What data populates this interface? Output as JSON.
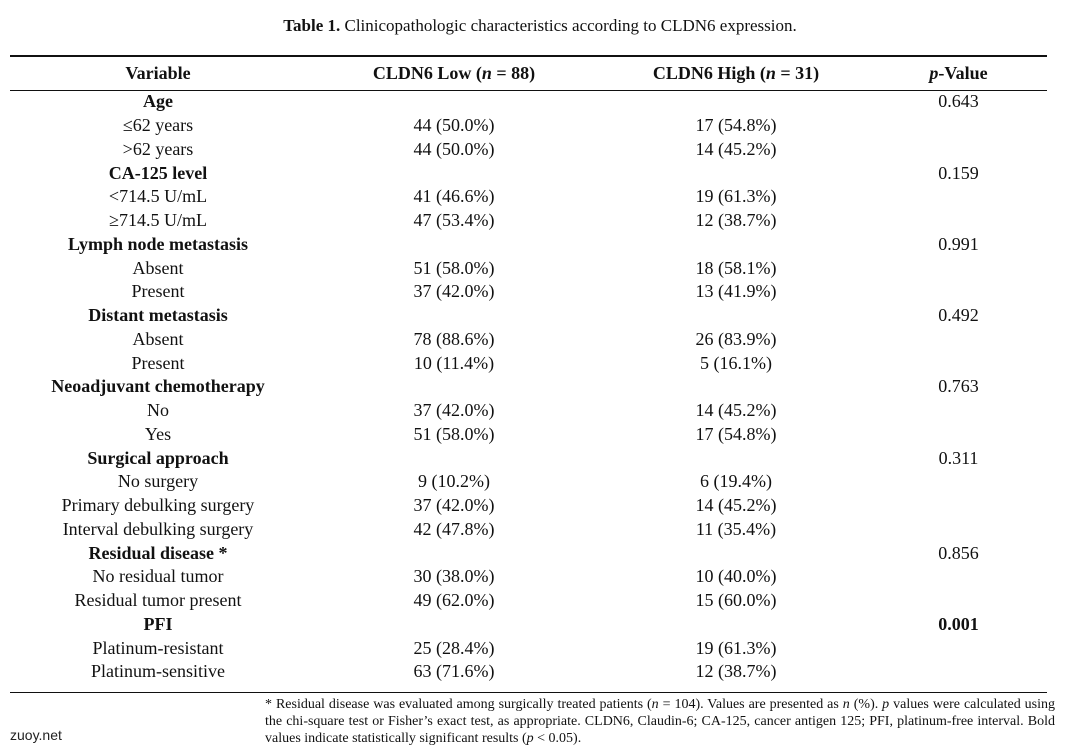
{
  "caption": {
    "label": "Table 1.",
    "text": "Clinicopathologic characteristics according to CLDN6 expression."
  },
  "header": {
    "variable": "Variable",
    "low": "CLDN6 Low (n = 88)",
    "high": "CLDN6 High (n = 31)",
    "p_value": "p-Value"
  },
  "rows": [
    {
      "type": "group",
      "variable": "Age",
      "low": "",
      "high": "",
      "p": "0.643",
      "p_bold": false
    },
    {
      "type": "item",
      "variable": "≤62 years",
      "low": "44 (50.0%)",
      "high": "17 (54.8%)",
      "p": ""
    },
    {
      "type": "item",
      "variable": ">62 years",
      "low": "44 (50.0%)",
      "high": "14 (45.2%)",
      "p": ""
    },
    {
      "type": "group",
      "variable": "CA-125 level",
      "low": "",
      "high": "",
      "p": "0.159",
      "p_bold": false
    },
    {
      "type": "item",
      "variable": "<714.5 U/mL",
      "low": "41 (46.6%)",
      "high": "19 (61.3%)",
      "p": ""
    },
    {
      "type": "item",
      "variable": "≥714.5 U/mL",
      "low": "47 (53.4%)",
      "high": "12 (38.7%)",
      "p": ""
    },
    {
      "type": "group",
      "variable": "Lymph node metastasis",
      "low": "",
      "high": "",
      "p": "0.991",
      "p_bold": false
    },
    {
      "type": "item",
      "variable": "Absent",
      "low": "51 (58.0%)",
      "high": "18 (58.1%)",
      "p": ""
    },
    {
      "type": "item",
      "variable": "Present",
      "low": "37 (42.0%)",
      "high": "13 (41.9%)",
      "p": ""
    },
    {
      "type": "group",
      "variable": "Distant metastasis",
      "low": "",
      "high": "",
      "p": "0.492",
      "p_bold": false
    },
    {
      "type": "item",
      "variable": "Absent",
      "low": "78 (88.6%)",
      "high": "26 (83.9%)",
      "p": ""
    },
    {
      "type": "item",
      "variable": "Present",
      "low": "10 (11.4%)",
      "high": "5 (16.1%)",
      "p": ""
    },
    {
      "type": "group",
      "variable": "Neoadjuvant chemotherapy",
      "low": "",
      "high": "",
      "p": "0.763",
      "p_bold": false
    },
    {
      "type": "item",
      "variable": "No",
      "low": "37 (42.0%)",
      "high": "14 (45.2%)",
      "p": ""
    },
    {
      "type": "item",
      "variable": "Yes",
      "low": "51 (58.0%)",
      "high": "17 (54.8%)",
      "p": ""
    },
    {
      "type": "group",
      "variable": "Surgical approach",
      "low": "",
      "high": "",
      "p": "0.311",
      "p_bold": false
    },
    {
      "type": "item",
      "variable": "No surgery",
      "low": "9 (10.2%)",
      "high": "6 (19.4%)",
      "p": ""
    },
    {
      "type": "item",
      "variable": "Primary debulking surgery",
      "low": "37 (42.0%)",
      "high": "14 (45.2%)",
      "p": ""
    },
    {
      "type": "item",
      "variable": "Interval debulking surgery",
      "low": "42 (47.8%)",
      "high": "11 (35.4%)",
      "p": ""
    },
    {
      "type": "group",
      "variable": "Residual disease *",
      "low": "",
      "high": "",
      "p": "0.856",
      "p_bold": false
    },
    {
      "type": "item",
      "variable": "No residual tumor",
      "low": "30 (38.0%)",
      "high": "10 (40.0%)",
      "p": ""
    },
    {
      "type": "item",
      "variable": "Residual tumor present",
      "low": "49 (62.0%)",
      "high": "15 (60.0%)",
      "p": ""
    },
    {
      "type": "group",
      "variable": "PFI",
      "low": "",
      "high": "",
      "p": "0.001",
      "p_bold": true
    },
    {
      "type": "item",
      "variable": "Platinum-resistant",
      "low": "25 (28.4%)",
      "high": "19 (61.3%)",
      "p": ""
    },
    {
      "type": "item",
      "variable": "Platinum-sensitive",
      "low": "63 (71.6%)",
      "high": "12 (38.7%)",
      "p": ""
    }
  ],
  "footnote": "* Residual disease was evaluated among surgically treated patients (n = 104). Values are presented as n (%). p values were calculated using the chi-square test or Fisher’s exact test, as appropriate. CLDN6, Claudin-6; CA-125, cancer antigen 125; PFI, platinum-free interval. Bold values indicate statistically significant results (p < 0.05).",
  "watermark": "zuoy.net"
}
